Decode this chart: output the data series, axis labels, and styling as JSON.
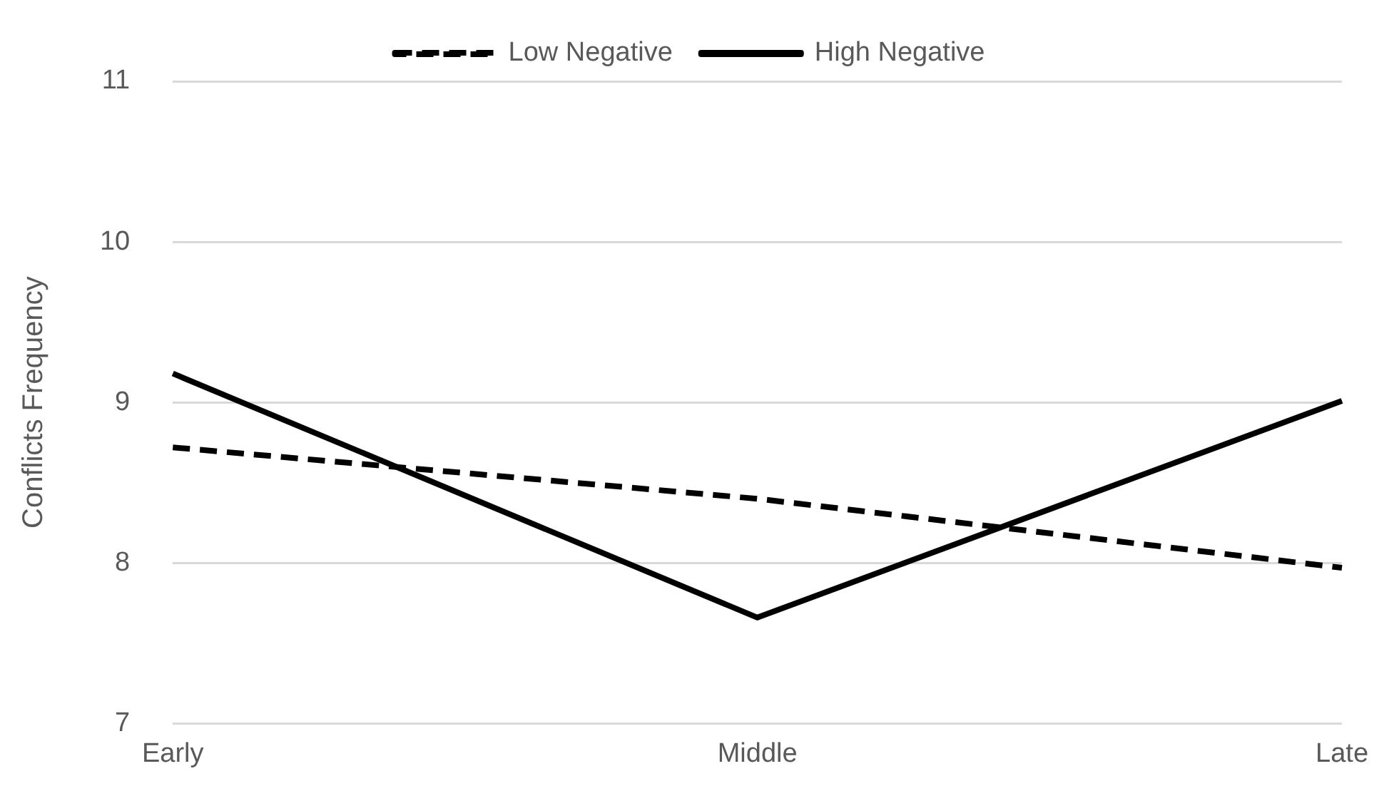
{
  "chart_data": {
    "type": "line",
    "ylabel": "Conflicts Frequency",
    "categories": [
      "Early",
      "Middle",
      "Late"
    ],
    "series": [
      {
        "name": "Low Negative",
        "color": "#000000",
        "values": [
          8.72,
          8.4,
          7.97
        ],
        "line_style": "dashed"
      },
      {
        "name": "High Negative",
        "color": "#000000",
        "values": [
          9.18,
          7.66,
          9.01
        ],
        "line_style": "solid"
      }
    ],
    "ylim": [
      7,
      11
    ],
    "yticks": [
      7,
      8,
      9,
      10,
      11
    ],
    "grid": "y",
    "legend": "top",
    "marker": "none"
  }
}
